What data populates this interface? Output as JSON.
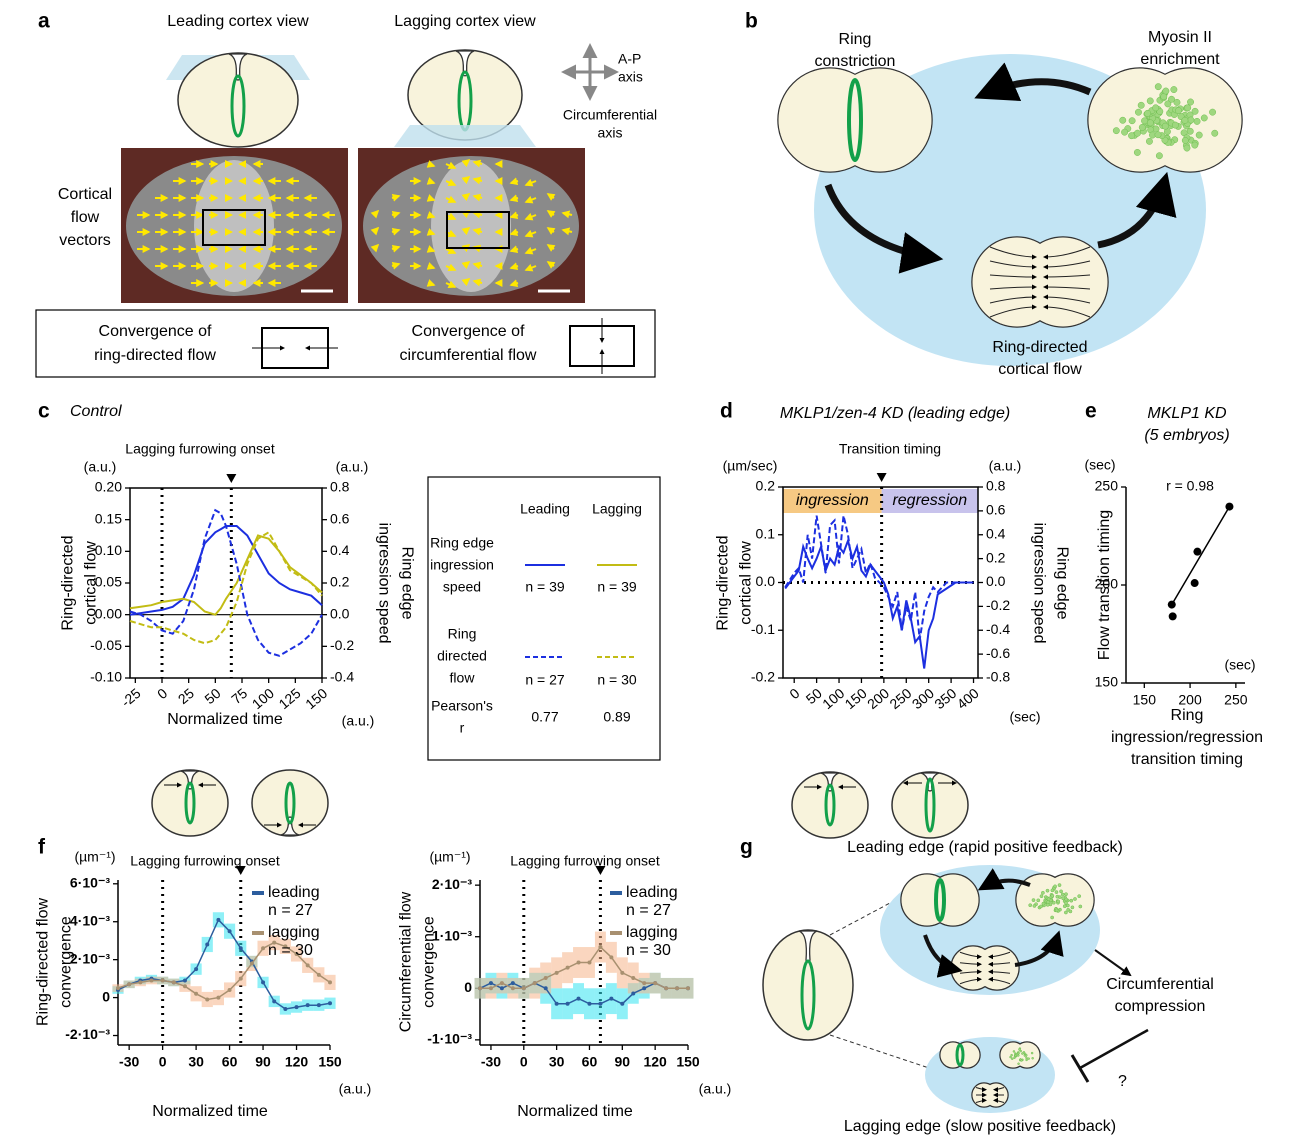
{
  "panel_labels": [
    "a",
    "b",
    "c",
    "d",
    "e",
    "f",
    "g"
  ],
  "panel_a": {
    "leading_view": "Leading cortex view",
    "lagging_view": "Lagging cortex view",
    "ap_axis": [
      "A-P",
      "axis"
    ],
    "circ_axis": [
      "Circumferential",
      "axis"
    ],
    "flow_vectors": [
      "Cortical",
      "flow",
      "vectors"
    ],
    "ring_convergence": [
      "Convergence of",
      "ring-directed flow"
    ],
    "circ_convergence": [
      "Convergence of",
      "circumferential flow"
    ]
  },
  "panel_b": {
    "ring_constriction": [
      "Ring",
      "constriction"
    ],
    "myosin": [
      "Myosin II",
      "enrichment"
    ],
    "flow": [
      "Ring-directed",
      "cortical flow"
    ]
  },
  "panel_c_legend": {
    "columns": [
      "Leading",
      "Lagging"
    ],
    "rows": [
      {
        "label": [
          "Ring edge",
          "ingression",
          "speed"
        ],
        "cells": [
          "n = 39",
          "n = 39"
        ]
      },
      {
        "label": [
          "Ring",
          "directed",
          "flow"
        ],
        "cells": [
          "n = 27",
          "n = 30"
        ]
      },
      {
        "label": [
          "Pearson's",
          "r"
        ],
        "cells": [
          "0.77",
          "0.89"
        ]
      }
    ]
  },
  "panel_g": {
    "leading": "Leading edge (rapid positive feedback)",
    "compression": [
      "Circumferential",
      "compression"
    ],
    "question": "?",
    "lagging": "Lagging edge (slow positive feedback)"
  },
  "chart_data": [
    {
      "type": "line",
      "title": "Control",
      "annotation": "Lagging furrowing onset",
      "markers": [
        0,
        65
      ],
      "x_unit": "(a.u.)",
      "y_unit": "(a.u.)",
      "y2_unit": "(a.u.)",
      "xlabel": "Normalized time",
      "ylabel": [
        "Ring-directed",
        "cortical flow"
      ],
      "y2label": [
        "Ring edge",
        "ingression speed"
      ],
      "xlim": [
        -30,
        150
      ],
      "xticks": [
        -25,
        0,
        25,
        50,
        75,
        100,
        125,
        150
      ],
      "ylim": [
        -0.1,
        0.2
      ],
      "yticks": [
        {
          "value": -0.1,
          "label": "-0.10"
        },
        {
          "value": -0.05,
          "label": "-0.05"
        },
        {
          "value": 0,
          "label": "0.00"
        },
        {
          "value": 0.05,
          "label": "0.05"
        },
        {
          "value": 0.1,
          "label": "0.10"
        },
        {
          "value": 0.15,
          "label": "0.15"
        },
        {
          "value": 0.2,
          "label": "0.20"
        }
      ],
      "y2lim": [
        -0.4,
        0.8
      ],
      "y2ticks": [
        -0.4,
        -0.2,
        {
          "value": 0,
          "label": "0.0"
        },
        0.2,
        0.4,
        0.6,
        0.8
      ],
      "x": [
        -30,
        -20,
        -10,
        0,
        10,
        20,
        30,
        40,
        50,
        55,
        60,
        70,
        80,
        90,
        100,
        110,
        120,
        130,
        140,
        150
      ],
      "series": [
        {
          "color": "#1c2fe0",
          "dash": false,
          "axis": "y2",
          "values": [
            0.0,
            0.01,
            0.02,
            0.03,
            0.05,
            0.1,
            0.25,
            0.45,
            0.52,
            0.54,
            0.56,
            0.56,
            0.5,
            0.38,
            0.26,
            0.2,
            0.16,
            0.14,
            0.12,
            0.06
          ]
        },
        {
          "color": "#c2bc14",
          "dash": false,
          "axis": "y2",
          "values": [
            0.04,
            0.05,
            0.06,
            0.08,
            0.09,
            0.1,
            0.08,
            0.02,
            0.0,
            0.04,
            0.1,
            0.2,
            0.35,
            0.5,
            0.48,
            0.4,
            0.3,
            0.25,
            0.2,
            0.14
          ]
        },
        {
          "color": "#1c2fe0",
          "dash": true,
          "axis": "y",
          "values": [
            0.005,
            0.0,
            -0.01,
            -0.025,
            -0.03,
            -0.01,
            0.04,
            0.12,
            0.165,
            0.16,
            0.14,
            0.08,
            0.0,
            -0.04,
            -0.06,
            -0.065,
            -0.055,
            -0.045,
            -0.03,
            0.0
          ]
        },
        {
          "color": "#c2bc14",
          "dash": true,
          "axis": "y",
          "values": [
            -0.01,
            -0.015,
            -0.02,
            -0.02,
            -0.025,
            -0.03,
            -0.04,
            -0.045,
            -0.04,
            -0.03,
            -0.02,
            0.02,
            0.08,
            0.12,
            0.13,
            0.1,
            0.07,
            0.06,
            0.05,
            0.03
          ]
        }
      ]
    },
    {
      "type": "line",
      "title": "MKLP1/zen-4 KD (leading edge)",
      "annotation": "Transition timing",
      "markers": [
        195
      ],
      "x_unit": "(sec)",
      "y_unit": "(µm/sec)",
      "y2_unit": "(a.u.)",
      "ylabel": [
        "Ring-directed",
        "cortical flow"
      ],
      "y2label": [
        "Ring edge",
        "ingression speed"
      ],
      "regions": [
        {
          "label": "ingression",
          "color": "#f6c983",
          "range": [
            -25,
            195
          ]
        },
        {
          "label": "regression",
          "color": "#c8c3ec",
          "range": [
            195,
            410
          ]
        }
      ],
      "xlim": [
        -25,
        410
      ],
      "xticks": [
        0,
        50,
        100,
        150,
        200,
        250,
        300,
        350,
        400
      ],
      "ylim": [
        -0.2,
        0.2
      ],
      "yticks": [
        -0.2,
        -0.1,
        {
          "value": 0,
          "label": "0.0"
        },
        0.1,
        0.2
      ],
      "y2lim": [
        -0.8,
        0.8
      ],
      "y2ticks": [
        -0.8,
        -0.6,
        -0.4,
        -0.2,
        {
          "value": 0,
          "label": "0.0"
        },
        0.2,
        0.4,
        0.6,
        0.8
      ],
      "x": [
        -20,
        0,
        10,
        20,
        30,
        40,
        50,
        60,
        70,
        80,
        90,
        100,
        110,
        120,
        130,
        140,
        150,
        160,
        170,
        180,
        190,
        200,
        210,
        220,
        230,
        240,
        250,
        260,
        270,
        280,
        290,
        300,
        310,
        320,
        340,
        360,
        380,
        400
      ],
      "series": [
        {
          "color": "#1c2fe0",
          "dash": false,
          "axis": "y2",
          "values": [
            -0.05,
            0.05,
            0.1,
            0.3,
            0.2,
            0.12,
            0.2,
            0.3,
            0.1,
            0.2,
            0.15,
            0.3,
            0.25,
            0.35,
            0.2,
            0.3,
            0.1,
            0.05,
            0.15,
            0.1,
            0.05,
            0.0,
            -0.1,
            -0.3,
            -0.2,
            -0.4,
            -0.15,
            -0.3,
            -0.5,
            -0.45,
            -0.72,
            -0.4,
            -0.3,
            -0.1,
            -0.05,
            0.0,
            0.0,
            0.0
          ]
        },
        {
          "color": "#1c2fe0",
          "dash": true,
          "axis": "y",
          "values": [
            -0.01,
            0.02,
            0.03,
            0.0,
            0.1,
            0.05,
            0.14,
            0.08,
            0.02,
            0.12,
            0.13,
            0.04,
            0.14,
            0.1,
            0.03,
            0.05,
            0.07,
            0.02,
            0.04,
            0.01,
            0.0,
            -0.01,
            -0.03,
            -0.05,
            -0.02,
            -0.1,
            -0.05,
            -0.08,
            -0.02,
            -0.12,
            -0.06,
            -0.03,
            -0.01,
            -0.02,
            0.0,
            0.0,
            0.0,
            0.0
          ]
        }
      ]
    },
    {
      "type": "scatter",
      "title": [
        "MKLP1 KD",
        "(5 embryos)"
      ],
      "annotation": "r = 0.98",
      "x_unit": "(sec)",
      "y_unit": "(sec)",
      "xlabel": [
        "Ring",
        "ingression/regression",
        "transition timing"
      ],
      "ylabel": "Flow transition timing",
      "xlim": [
        130,
        260
      ],
      "xticks": [
        150,
        200,
        250
      ],
      "ylim": [
        150,
        250
      ],
      "yticks": [
        150,
        200,
        250
      ],
      "x": [
        180,
        181,
        205,
        208,
        243
      ],
      "values": [
        190,
        184,
        201,
        217,
        240
      ],
      "color": "#000000"
    },
    {
      "type": "line",
      "annotation": "Lagging furrowing onset",
      "markers": [
        0,
        70
      ],
      "x_unit": "(a.u.)",
      "y_unit": "(µm⁻¹)",
      "xlabel": "Normalized time",
      "ylabel": [
        "Ring-directed flow",
        "convergence"
      ],
      "xlim": [
        -40,
        150
      ],
      "xticks": [
        -30,
        0,
        30,
        60,
        90,
        120,
        150
      ],
      "ylim": [
        -0.0025,
        0.0062
      ],
      "yticks": [
        {
          "value": -0.002,
          "label": "-2·10⁻³"
        },
        0,
        {
          "value": 0.002,
          "label": "2·10⁻³"
        },
        {
          "value": 0.004,
          "label": "4·10⁻³"
        },
        {
          "value": 0.006,
          "label": "6·10⁻³"
        }
      ],
      "x": [
        -40,
        -30,
        -20,
        -10,
        0,
        10,
        20,
        30,
        40,
        50,
        60,
        70,
        80,
        90,
        100,
        110,
        120,
        130,
        140,
        150
      ],
      "series": [
        {
          "name": "leading",
          "n_label": "n = 27",
          "color": "#2c5d9e",
          "band_color": "#33e3f0",
          "values": [
            0.0004,
            0.0007,
            0.0009,
            0.001,
            0.0009,
            0.0008,
            0.0009,
            0.0015,
            0.0028,
            0.0041,
            0.0035,
            0.0026,
            0.0019,
            0.0008,
            -0.0002,
            -0.0006,
            -0.0005,
            -0.0004,
            -0.0004,
            -0.0003
          ],
          "errors": [
            0.0002,
            0.0002,
            0.0002,
            0.0002,
            0.0002,
            0.0002,
            0.0002,
            0.0003,
            0.0004,
            0.0004,
            0.0004,
            0.0004,
            0.0003,
            0.0003,
            0.0003,
            0.0003,
            0.0003,
            0.0003,
            0.0003,
            0.0003
          ]
        },
        {
          "name": "lagging",
          "n_label": "n = 30",
          "color": "#a89070",
          "band_color": "#f6b58a",
          "values": [
            0.0005,
            0.0007,
            0.0008,
            0.0009,
            0.0009,
            0.0008,
            0.0006,
            0.0002,
            -0.0001,
            0.0,
            0.0004,
            0.001,
            0.0018,
            0.0026,
            0.0029,
            0.0027,
            0.0023,
            0.0017,
            0.0012,
            0.0008
          ],
          "errors": [
            0.0002,
            0.0002,
            0.0002,
            0.0002,
            0.0002,
            0.0002,
            0.0003,
            0.0004,
            0.0004,
            0.0004,
            0.0004,
            0.0004,
            0.0004,
            0.0004,
            0.0004,
            0.0004,
            0.0004,
            0.0004,
            0.0004,
            0.0004
          ]
        }
      ]
    },
    {
      "type": "line",
      "annotation": "Lagging furrowing onset",
      "markers": [
        0,
        70
      ],
      "x_unit": "(a.u.)",
      "y_unit": "(µm⁻¹)",
      "xlabel": "Normalized time",
      "ylabel": [
        "Circumferential flow",
        "convergence"
      ],
      "xlim": [
        -40,
        150
      ],
      "xticks": [
        -30,
        0,
        30,
        60,
        90,
        120,
        150
      ],
      "ylim": [
        -0.0011,
        0.0021
      ],
      "yticks": [
        {
          "value": -0.001,
          "label": "-1·10⁻³"
        },
        0,
        {
          "value": 0.001,
          "label": "1·10⁻³"
        },
        {
          "value": 0.002,
          "label": "2·10⁻³"
        }
      ],
      "x": [
        -40,
        -30,
        -20,
        -10,
        0,
        10,
        20,
        30,
        40,
        50,
        60,
        70,
        80,
        90,
        100,
        110,
        120,
        130,
        140,
        150
      ],
      "series": [
        {
          "name": "leading",
          "n_label": "n = 27",
          "color": "#2c5d9e",
          "band_color": "#33e3f0",
          "values": [
            0.0,
            0.0001,
            0.0,
            0.0001,
            0.0,
            0.0001,
            0.0,
            -0.0003,
            -0.0003,
            -0.0002,
            -0.0003,
            -0.0003,
            -0.0002,
            -0.0003,
            -0.0001,
            0.0,
            0.0001,
            0.0,
            0.0,
            0.0
          ],
          "errors": [
            0.0002,
            0.0002,
            0.0002,
            0.0002,
            0.0002,
            0.0002,
            0.0003,
            0.0003,
            0.0003,
            0.0003,
            0.0003,
            0.0003,
            0.0003,
            0.0003,
            0.0002,
            0.0002,
            0.0002,
            0.0002,
            0.0002,
            0.0002
          ]
        },
        {
          "name": "lagging",
          "n_label": "n = 30",
          "color": "#a89070",
          "band_color": "#f6b58a",
          "values": [
            0.0,
            0.0,
            0.0001,
            0.0,
            0.0,
            0.0001,
            0.0002,
            0.0003,
            0.0004,
            0.0005,
            0.0005,
            0.0008,
            0.0006,
            0.0003,
            0.0002,
            0.0001,
            0.0001,
            0.0,
            0.0,
            0.0
          ],
          "errors": [
            0.0002,
            0.0002,
            0.0002,
            0.0002,
            0.0002,
            0.0003,
            0.0003,
            0.0003,
            0.0003,
            0.0003,
            0.0003,
            0.0003,
            0.0003,
            0.0003,
            0.0003,
            0.0002,
            0.0002,
            0.0002,
            0.0002,
            0.0002
          ]
        }
      ]
    }
  ]
}
